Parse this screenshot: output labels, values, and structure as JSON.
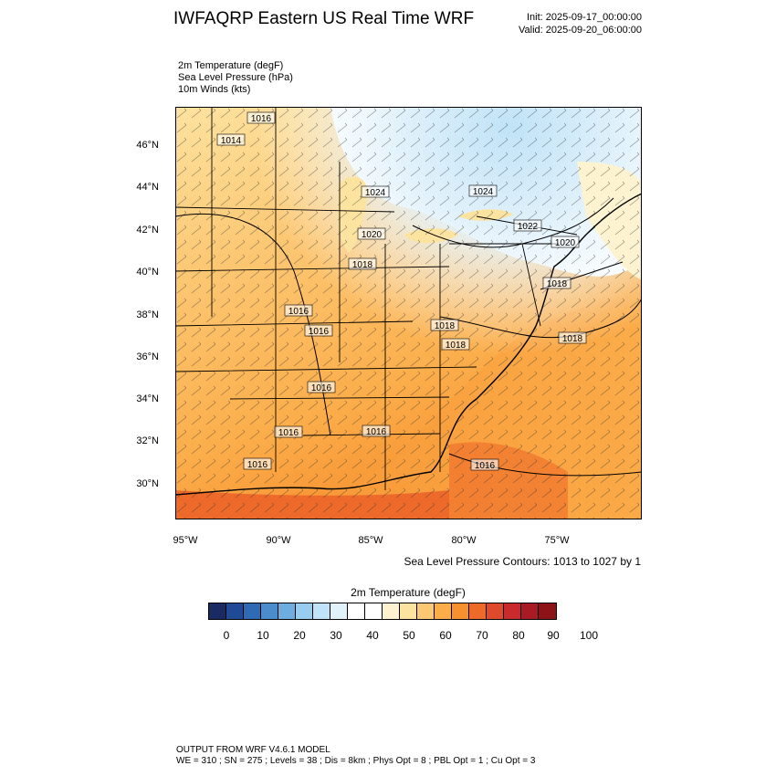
{
  "title": "IWFAQRP Eastern US Real Time WRF",
  "init": "Init: 2025-09-17_00:00:00",
  "valid": "Valid: 2025-09-20_06:00:00",
  "fields": [
    {
      "label": "2m Temperature   (degF)"
    },
    {
      "label": "Sea Level Pressure   (hPa)"
    },
    {
      "label": "10m Winds   (kts)"
    }
  ],
  "axes": {
    "x_ticks": [
      "95°W",
      "90°W",
      "85°W",
      "80°W",
      "75°W"
    ],
    "y_ticks": [
      "46°N",
      "44°N",
      "42°N",
      "40°N",
      "38°N",
      "36°N",
      "34°N",
      "32°N",
      "30°N"
    ]
  },
  "pressure_labels": [
    "1016",
    "1014",
    "1024",
    "1024",
    "1022",
    "1020",
    "1020",
    "1018",
    "1018",
    "1018",
    "1016",
    "1016",
    "1018",
    "1018",
    "1016",
    "1016",
    "1016",
    "1016",
    "1016"
  ],
  "contour_note": "Sea Level Pressure Contours: 1013 to 1027 by 1",
  "colorbar": {
    "title": "2m Temperature  (degF)",
    "colors": [
      "#1a2a62",
      "#1f4a96",
      "#2e6bb4",
      "#4a8ccc",
      "#6eaddf",
      "#98cdf0",
      "#c0e3f7",
      "#e2f2fb",
      "#ffffff",
      "#ffffff",
      "#fdf3d0",
      "#fde3a0",
      "#fcc874",
      "#fbad4a",
      "#f7902f",
      "#ee6a2a",
      "#df4a2c",
      "#c92a2c",
      "#aa1a24",
      "#8c1418"
    ],
    "ticks": [
      "0",
      "10",
      "20",
      "30",
      "40",
      "50",
      "60",
      "70",
      "80",
      "90",
      "100"
    ]
  },
  "footer": {
    "line1": "OUTPUT FROM WRF V4.6.1 MODEL",
    "line2": "WE = 310 ; SN = 275 ; Levels = 38 ; Dis = 8km ; Phys Opt = 8 ; PBL Opt = 1 ; Cu Opt = 3"
  }
}
